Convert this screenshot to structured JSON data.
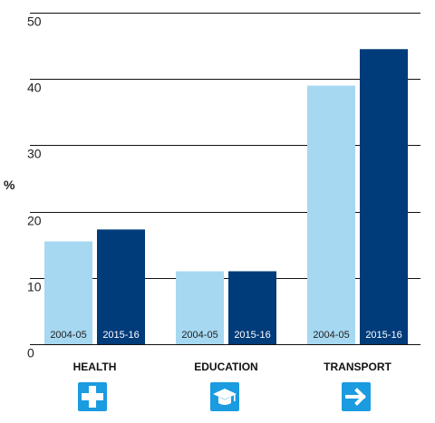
{
  "chart_data": {
    "type": "bar",
    "categories": [
      "HEALTH",
      "EDUCATION",
      "TRANSPORT"
    ],
    "series": [
      {
        "name": "2004-05",
        "values": [
          15.5,
          11.0,
          39.0
        ],
        "color": "#a6d8f2",
        "label_color": "#222222"
      },
      {
        "name": "2015-16",
        "values": [
          17.3,
          11.0,
          44.5
        ],
        "color": "#003b7a",
        "label_color": "#ffffff"
      }
    ],
    "ylabel": "%",
    "ylim": [
      0,
      50
    ],
    "yticks": [
      0,
      10,
      20,
      30,
      40,
      50
    ],
    "grid": true,
    "category_icons": [
      "medical-cross-icon",
      "graduation-cap-icon",
      "arrow-right-icon"
    ],
    "icon_color": "#1b9be0"
  }
}
